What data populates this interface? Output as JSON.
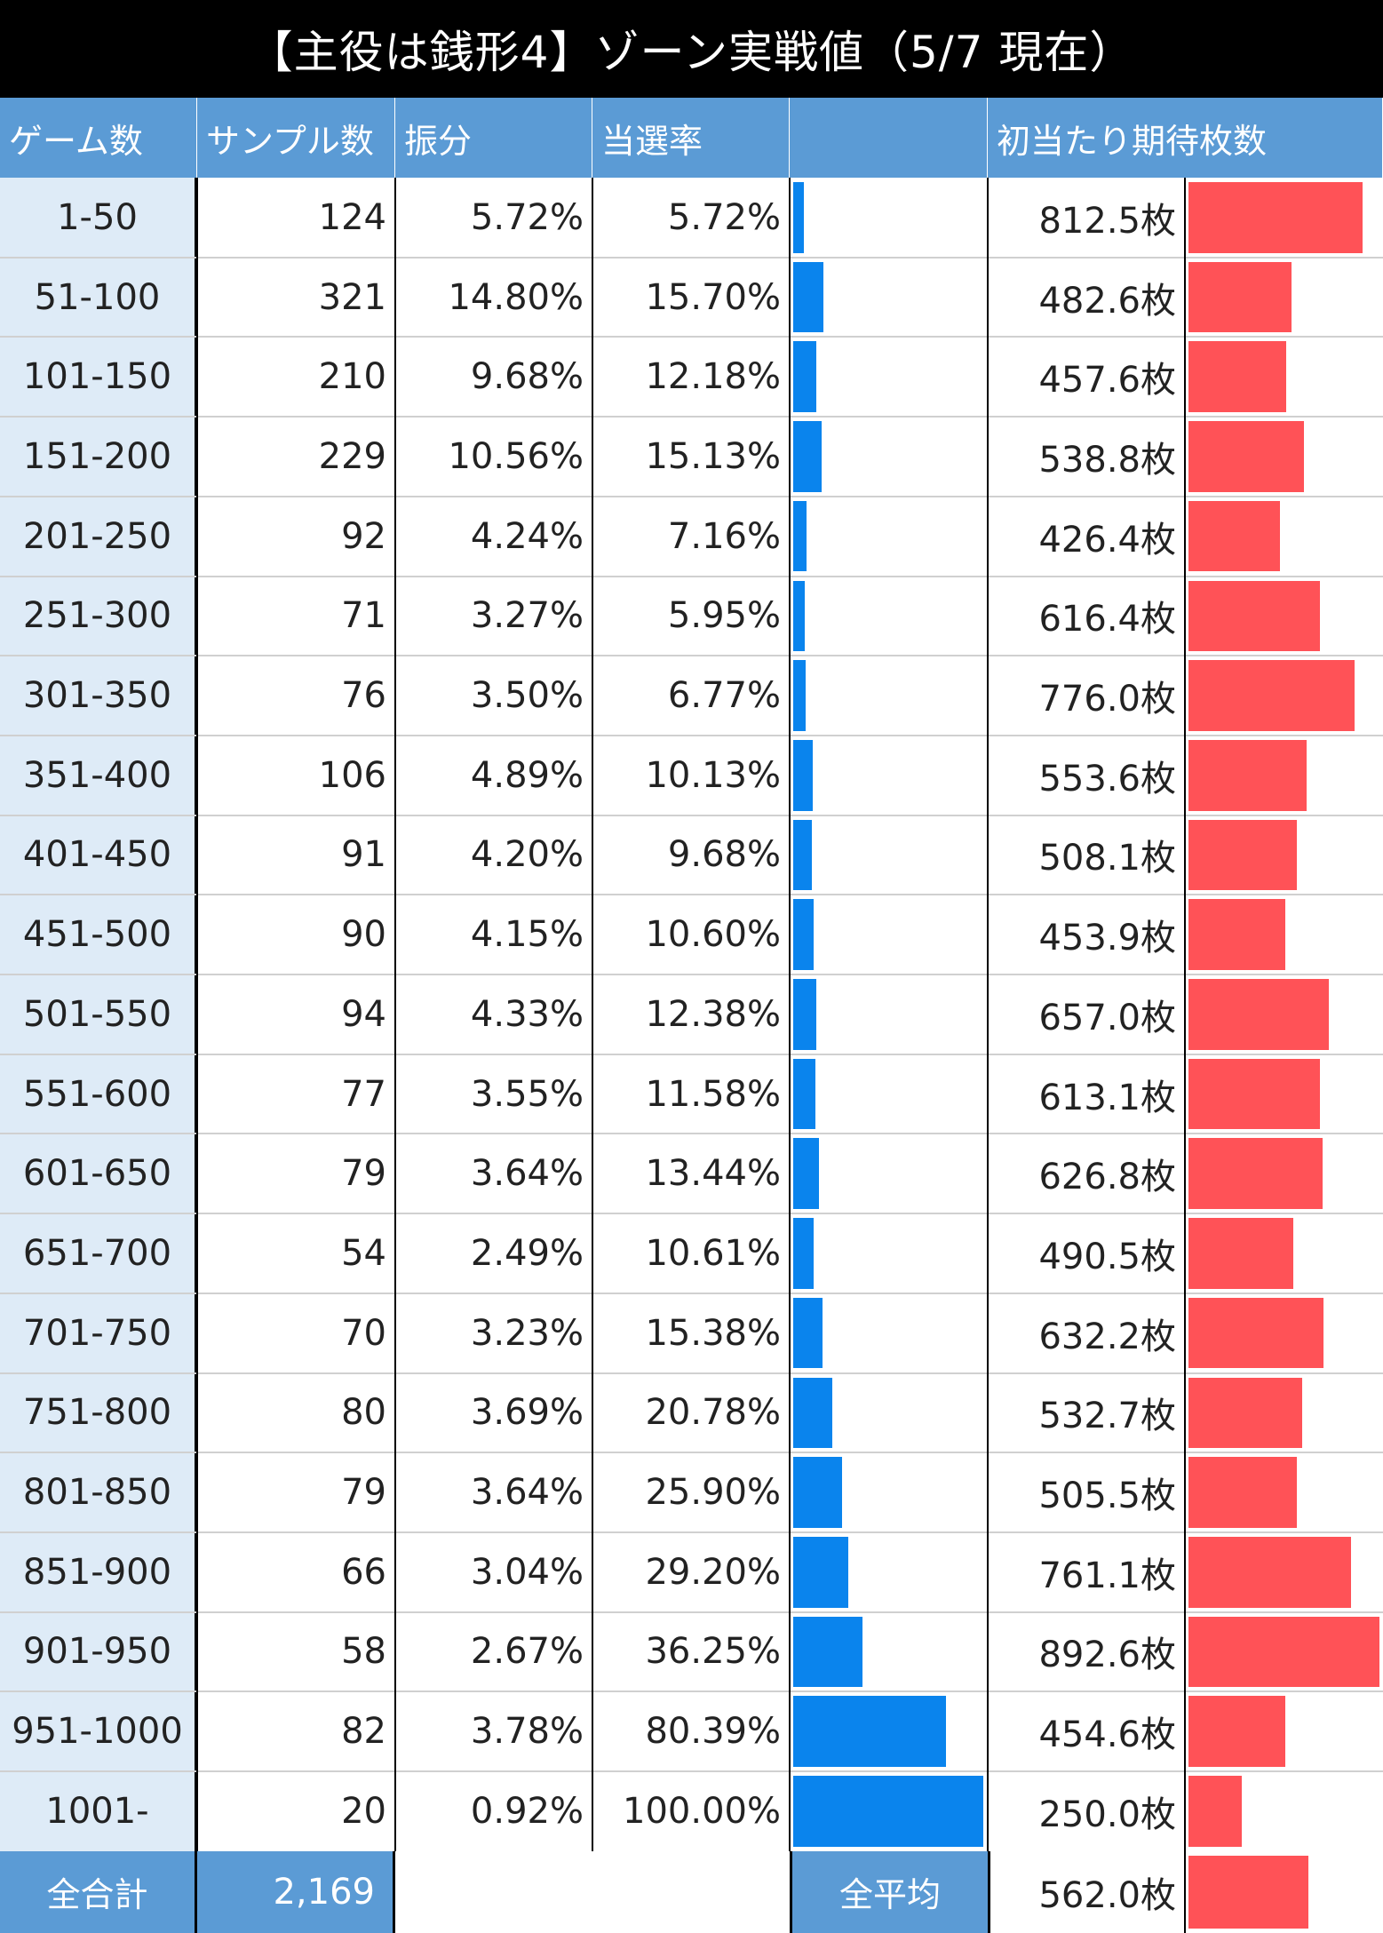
{
  "header": {
    "title": "【主役は銭形4】ゾーン実戦値（5/7 現在）"
  },
  "columns": {
    "game": "ゲーム数",
    "samples": "サンプル数",
    "share": "振分",
    "rate": "当選率",
    "bar": "",
    "expect": "初当たり期待枚数"
  },
  "rows": [
    {
      "game": "1-50",
      "samples": "124",
      "share": "5.72%",
      "rate": "5.72%",
      "expect": "812.5枚"
    },
    {
      "game": "51-100",
      "samples": "321",
      "share": "14.80%",
      "rate": "15.70%",
      "expect": "482.6枚"
    },
    {
      "game": "101-150",
      "samples": "210",
      "share": "9.68%",
      "rate": "12.18%",
      "expect": "457.6枚"
    },
    {
      "game": "151-200",
      "samples": "229",
      "share": "10.56%",
      "rate": "15.13%",
      "expect": "538.8枚"
    },
    {
      "game": "201-250",
      "samples": "92",
      "share": "4.24%",
      "rate": "7.16%",
      "expect": "426.4枚"
    },
    {
      "game": "251-300",
      "samples": "71",
      "share": "3.27%",
      "rate": "5.95%",
      "expect": "616.4枚"
    },
    {
      "game": "301-350",
      "samples": "76",
      "share": "3.50%",
      "rate": "6.77%",
      "expect": "776.0枚"
    },
    {
      "game": "351-400",
      "samples": "106",
      "share": "4.89%",
      "rate": "10.13%",
      "expect": "553.6枚"
    },
    {
      "game": "401-450",
      "samples": "91",
      "share": "4.20%",
      "rate": "9.68%",
      "expect": "508.1枚"
    },
    {
      "game": "451-500",
      "samples": "90",
      "share": "4.15%",
      "rate": "10.60%",
      "expect": "453.9枚"
    },
    {
      "game": "501-550",
      "samples": "94",
      "share": "4.33%",
      "rate": "12.38%",
      "expect": "657.0枚"
    },
    {
      "game": "551-600",
      "samples": "77",
      "share": "3.55%",
      "rate": "11.58%",
      "expect": "613.1枚"
    },
    {
      "game": "601-650",
      "samples": "79",
      "share": "3.64%",
      "rate": "13.44%",
      "expect": "626.8枚"
    },
    {
      "game": "651-700",
      "samples": "54",
      "share": "2.49%",
      "rate": "10.61%",
      "expect": "490.5枚"
    },
    {
      "game": "701-750",
      "samples": "70",
      "share": "3.23%",
      "rate": "15.38%",
      "expect": "632.2枚"
    },
    {
      "game": "751-800",
      "samples": "80",
      "share": "3.69%",
      "rate": "20.78%",
      "expect": "532.7枚"
    },
    {
      "game": "801-850",
      "samples": "79",
      "share": "3.64%",
      "rate": "25.90%",
      "expect": "505.5枚"
    },
    {
      "game": "851-900",
      "samples": "66",
      "share": "3.04%",
      "rate": "29.20%",
      "expect": "761.1枚"
    },
    {
      "game": "901-950",
      "samples": "58",
      "share": "2.67%",
      "rate": "36.25%",
      "expect": "892.6枚"
    },
    {
      "game": "951-1000",
      "samples": "82",
      "share": "3.78%",
      "rate": "80.39%",
      "expect": "454.6枚"
    },
    {
      "game": "1001-",
      "samples": "20",
      "share": "0.92%",
      "rate": "100.00%",
      "expect": "250.0枚"
    }
  ],
  "footer": {
    "total_label": "全合計",
    "total_value": "2,169",
    "avg_label": "全平均",
    "avg_value": "562.0枚"
  },
  "colors": {
    "header_blue": "#5b9bd5",
    "game_col_bg": "#deebf7",
    "rate_bar": "#0a84ed",
    "expect_bar": "#ff5257"
  },
  "chart_data": {
    "type": "table",
    "title": "【主役は銭形4】ゾーン実戦値（5/7 現在）",
    "categories": [
      "1-50",
      "51-100",
      "101-150",
      "151-200",
      "201-250",
      "251-300",
      "301-350",
      "351-400",
      "401-450",
      "451-500",
      "501-550",
      "551-600",
      "601-650",
      "651-700",
      "701-750",
      "751-800",
      "801-850",
      "851-900",
      "901-950",
      "951-1000",
      "1001-"
    ],
    "series": [
      {
        "name": "当選率 (%)",
        "values": [
          5.72,
          15.7,
          12.18,
          15.13,
          7.16,
          5.95,
          6.77,
          10.13,
          9.68,
          10.6,
          12.38,
          11.58,
          13.44,
          10.61,
          15.38,
          20.78,
          25.9,
          29.2,
          36.25,
          80.39,
          100.0
        ],
        "max": 100
      },
      {
        "name": "初当たり期待枚数",
        "values": [
          812.5,
          482.6,
          457.6,
          538.8,
          426.4,
          616.4,
          776.0,
          553.6,
          508.1,
          453.9,
          657.0,
          613.1,
          626.8,
          490.5,
          632.2,
          532.7,
          505.5,
          761.1,
          892.6,
          454.6,
          250.0
        ],
        "max": 892.6
      }
    ],
    "average_expect": 562.0
  }
}
